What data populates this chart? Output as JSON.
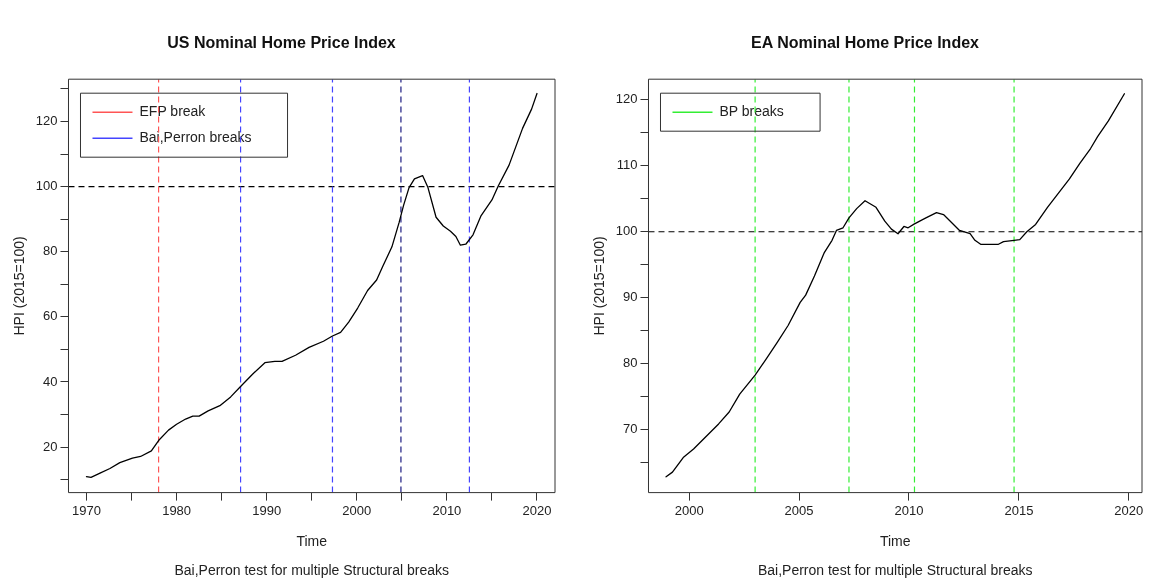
{
  "chart_data": [
    {
      "type": "line",
      "title": "US Nominal Home Price Index",
      "xlabel": "Time",
      "ylabel": "HPI (2015=100)",
      "annotations": [
        "Bai,Perron test for multiple Structural breaks"
      ],
      "xlim": [
        1968,
        2022
      ],
      "ylim": [
        6,
        133
      ],
      "xticks": [
        1970,
        {
          "value": 1975,
          "label": null
        },
        1980,
        {
          "value": 1985,
          "label": null
        },
        1990,
        {
          "value": 1995,
          "label": null
        },
        2000,
        {
          "value": 2005,
          "label": null
        },
        2010,
        {
          "value": 2015,
          "label": null
        },
        2020
      ],
      "yticks": [
        {
          "value": 10,
          "label": null
        },
        20,
        {
          "value": 30,
          "label": null
        },
        40,
        {
          "value": 50,
          "label": null
        },
        60,
        {
          "value": 70,
          "label": null
        },
        80,
        {
          "value": 90,
          "label": null
        },
        100,
        {
          "value": 110,
          "label": null
        },
        120,
        {
          "value": 130,
          "label": null
        }
      ],
      "grid": false,
      "legend": "top left",
      "marker": "none",
      "line_style": "solid",
      "series": [
        {
          "color": "#000000",
          "x": [
            1970.0,
            1970.5,
            1971.5,
            1972.6,
            1973.7,
            1975.1,
            1976.0,
            1977.2,
            1978.0,
            1979.1,
            1980.0,
            1981.0,
            1981.8,
            1982.5,
            1983.5,
            1984.8,
            1986.0,
            1987.1,
            1988.4,
            1989.8,
            1990.9,
            1991.7,
            1993.2,
            1994.7,
            1996.3,
            1997.3,
            1998.2,
            1999.1,
            2000.1,
            2001.2,
            2002.2,
            2002.9,
            2003.9,
            2004.7,
            2005.2,
            2005.8,
            2006.4,
            2007.3,
            2007.9,
            2008.8,
            2009.6,
            2010.4,
            2011.0,
            2011.5,
            2012.1,
            2012.9,
            2013.8,
            2015.0,
            2015.7,
            2016.9,
            2018.4,
            2019.4,
            2020.0
          ],
          "values": [
            10.9,
            10.7,
            12.0,
            13.4,
            15.2,
            16.6,
            17.1,
            18.8,
            22.0,
            25.2,
            27.0,
            28.6,
            29.5,
            29.5,
            31.1,
            32.7,
            35.4,
            38.6,
            42.3,
            45.9,
            46.3,
            46.3,
            48.2,
            50.6,
            52.5,
            54.1,
            55.2,
            58.4,
            62.7,
            68.1,
            71.3,
            75.6,
            81.5,
            89.0,
            94.3,
            99.7,
            102.4,
            103.4,
            99.7,
            90.6,
            87.9,
            86.3,
            84.7,
            82.0,
            82.3,
            85.2,
            91.1,
            95.9,
            100.2,
            106.6,
            117.9,
            123.8,
            128.6
          ]
        }
      ],
      "ref_lines": [
        {
          "axis": "x",
          "value": 1978.0,
          "label": "EFP break",
          "color": "#ff5555",
          "line_style": "dashed"
        },
        {
          "axis": "x",
          "value": 1987.1,
          "label": "Bai,Perron breaks",
          "color": "#4444ff",
          "line_style": "dashed"
        },
        {
          "axis": "x",
          "value": 1997.3,
          "color": "#4444ff",
          "line_style": "dashed"
        },
        {
          "axis": "x",
          "value": 2004.9,
          "color": "#1a1a80",
          "line_style": "dashed"
        },
        {
          "axis": "x",
          "value": 2012.5,
          "color": "#4444ff",
          "line_style": "dashed"
        },
        {
          "axis": "y",
          "value": 100,
          "color": "#000000",
          "line_style": "dashed"
        }
      ]
    },
    {
      "type": "line",
      "title": "EA Nominal Home Price Index",
      "xlabel": "Time",
      "ylabel": "HPI (2015=100)",
      "annotations": [
        "Bai,Perron test for multiple Structural breaks"
      ],
      "xlim": [
        1998.15,
        2020.6
      ],
      "ylim": [
        60.5,
        123.1
      ],
      "xticks": [
        2000,
        2005,
        2010,
        2015,
        2020
      ],
      "yticks": [
        {
          "value": 65,
          "label": null
        },
        70,
        {
          "value": 75,
          "label": null
        },
        80,
        {
          "value": 85,
          "label": null
        },
        90,
        {
          "value": 95,
          "label": null
        },
        100,
        {
          "value": 105,
          "label": null
        },
        110,
        {
          "value": 115,
          "label": null
        },
        120
      ],
      "grid": false,
      "legend": "top left",
      "marker": "none",
      "line_style": "solid",
      "series": [
        {
          "color": "#000000",
          "x": [
            1998.95,
            1999.24,
            1999.73,
            2000.2,
            2000.77,
            2001.34,
            2001.82,
            2002.3,
            2003.0,
            2003.5,
            2004.0,
            2004.5,
            2005.05,
            2005.3,
            2005.7,
            2006.14,
            2006.5,
            2006.7,
            2007.0,
            2007.27,
            2007.62,
            2008.0,
            2008.5,
            2008.9,
            2009.2,
            2009.5,
            2009.77,
            2009.96,
            2010.25,
            2010.77,
            2011.25,
            2011.57,
            2011.97,
            2012.3,
            2012.78,
            2013.0,
            2013.26,
            2014.07,
            2014.3,
            2014.78,
            2015.04,
            2015.36,
            2015.76,
            2016.3,
            2017.3,
            2017.78,
            2018.26,
            2018.58,
            2019.07,
            2019.8
          ],
          "values": [
            62.9,
            63.6,
            65.8,
            67.1,
            69.0,
            70.9,
            72.7,
            75.4,
            78.3,
            80.7,
            83.2,
            85.8,
            89.3,
            90.4,
            93.3,
            96.8,
            98.7,
            100.2,
            100.6,
            102.1,
            103.5,
            104.7,
            103.7,
            101.6,
            100.4,
            99.7,
            100.8,
            100.6,
            101.2,
            102.1,
            102.9,
            102.6,
            101.3,
            100.2,
            99.7,
            98.7,
            98.1,
            98.1,
            98.5,
            98.7,
            98.8,
            100.0,
            101.1,
            103.7,
            108.0,
            110.4,
            112.6,
            114.4,
            116.8,
            120.9
          ]
        }
      ],
      "ref_lines": [
        {
          "axis": "x",
          "value": 2003.0,
          "label": "BP breaks",
          "color": "#33ee33",
          "line_style": "dashed"
        },
        {
          "axis": "x",
          "value": 2007.27,
          "color": "#33ee33",
          "line_style": "dashed"
        },
        {
          "axis": "x",
          "value": 2010.25,
          "color": "#33ee33",
          "line_style": "dashed"
        },
        {
          "axis": "x",
          "value": 2014.78,
          "color": "#33ee33",
          "line_style": "dashed"
        },
        {
          "axis": "y",
          "value": 100,
          "color": "#000000",
          "line_style": "dashed"
        }
      ]
    }
  ]
}
